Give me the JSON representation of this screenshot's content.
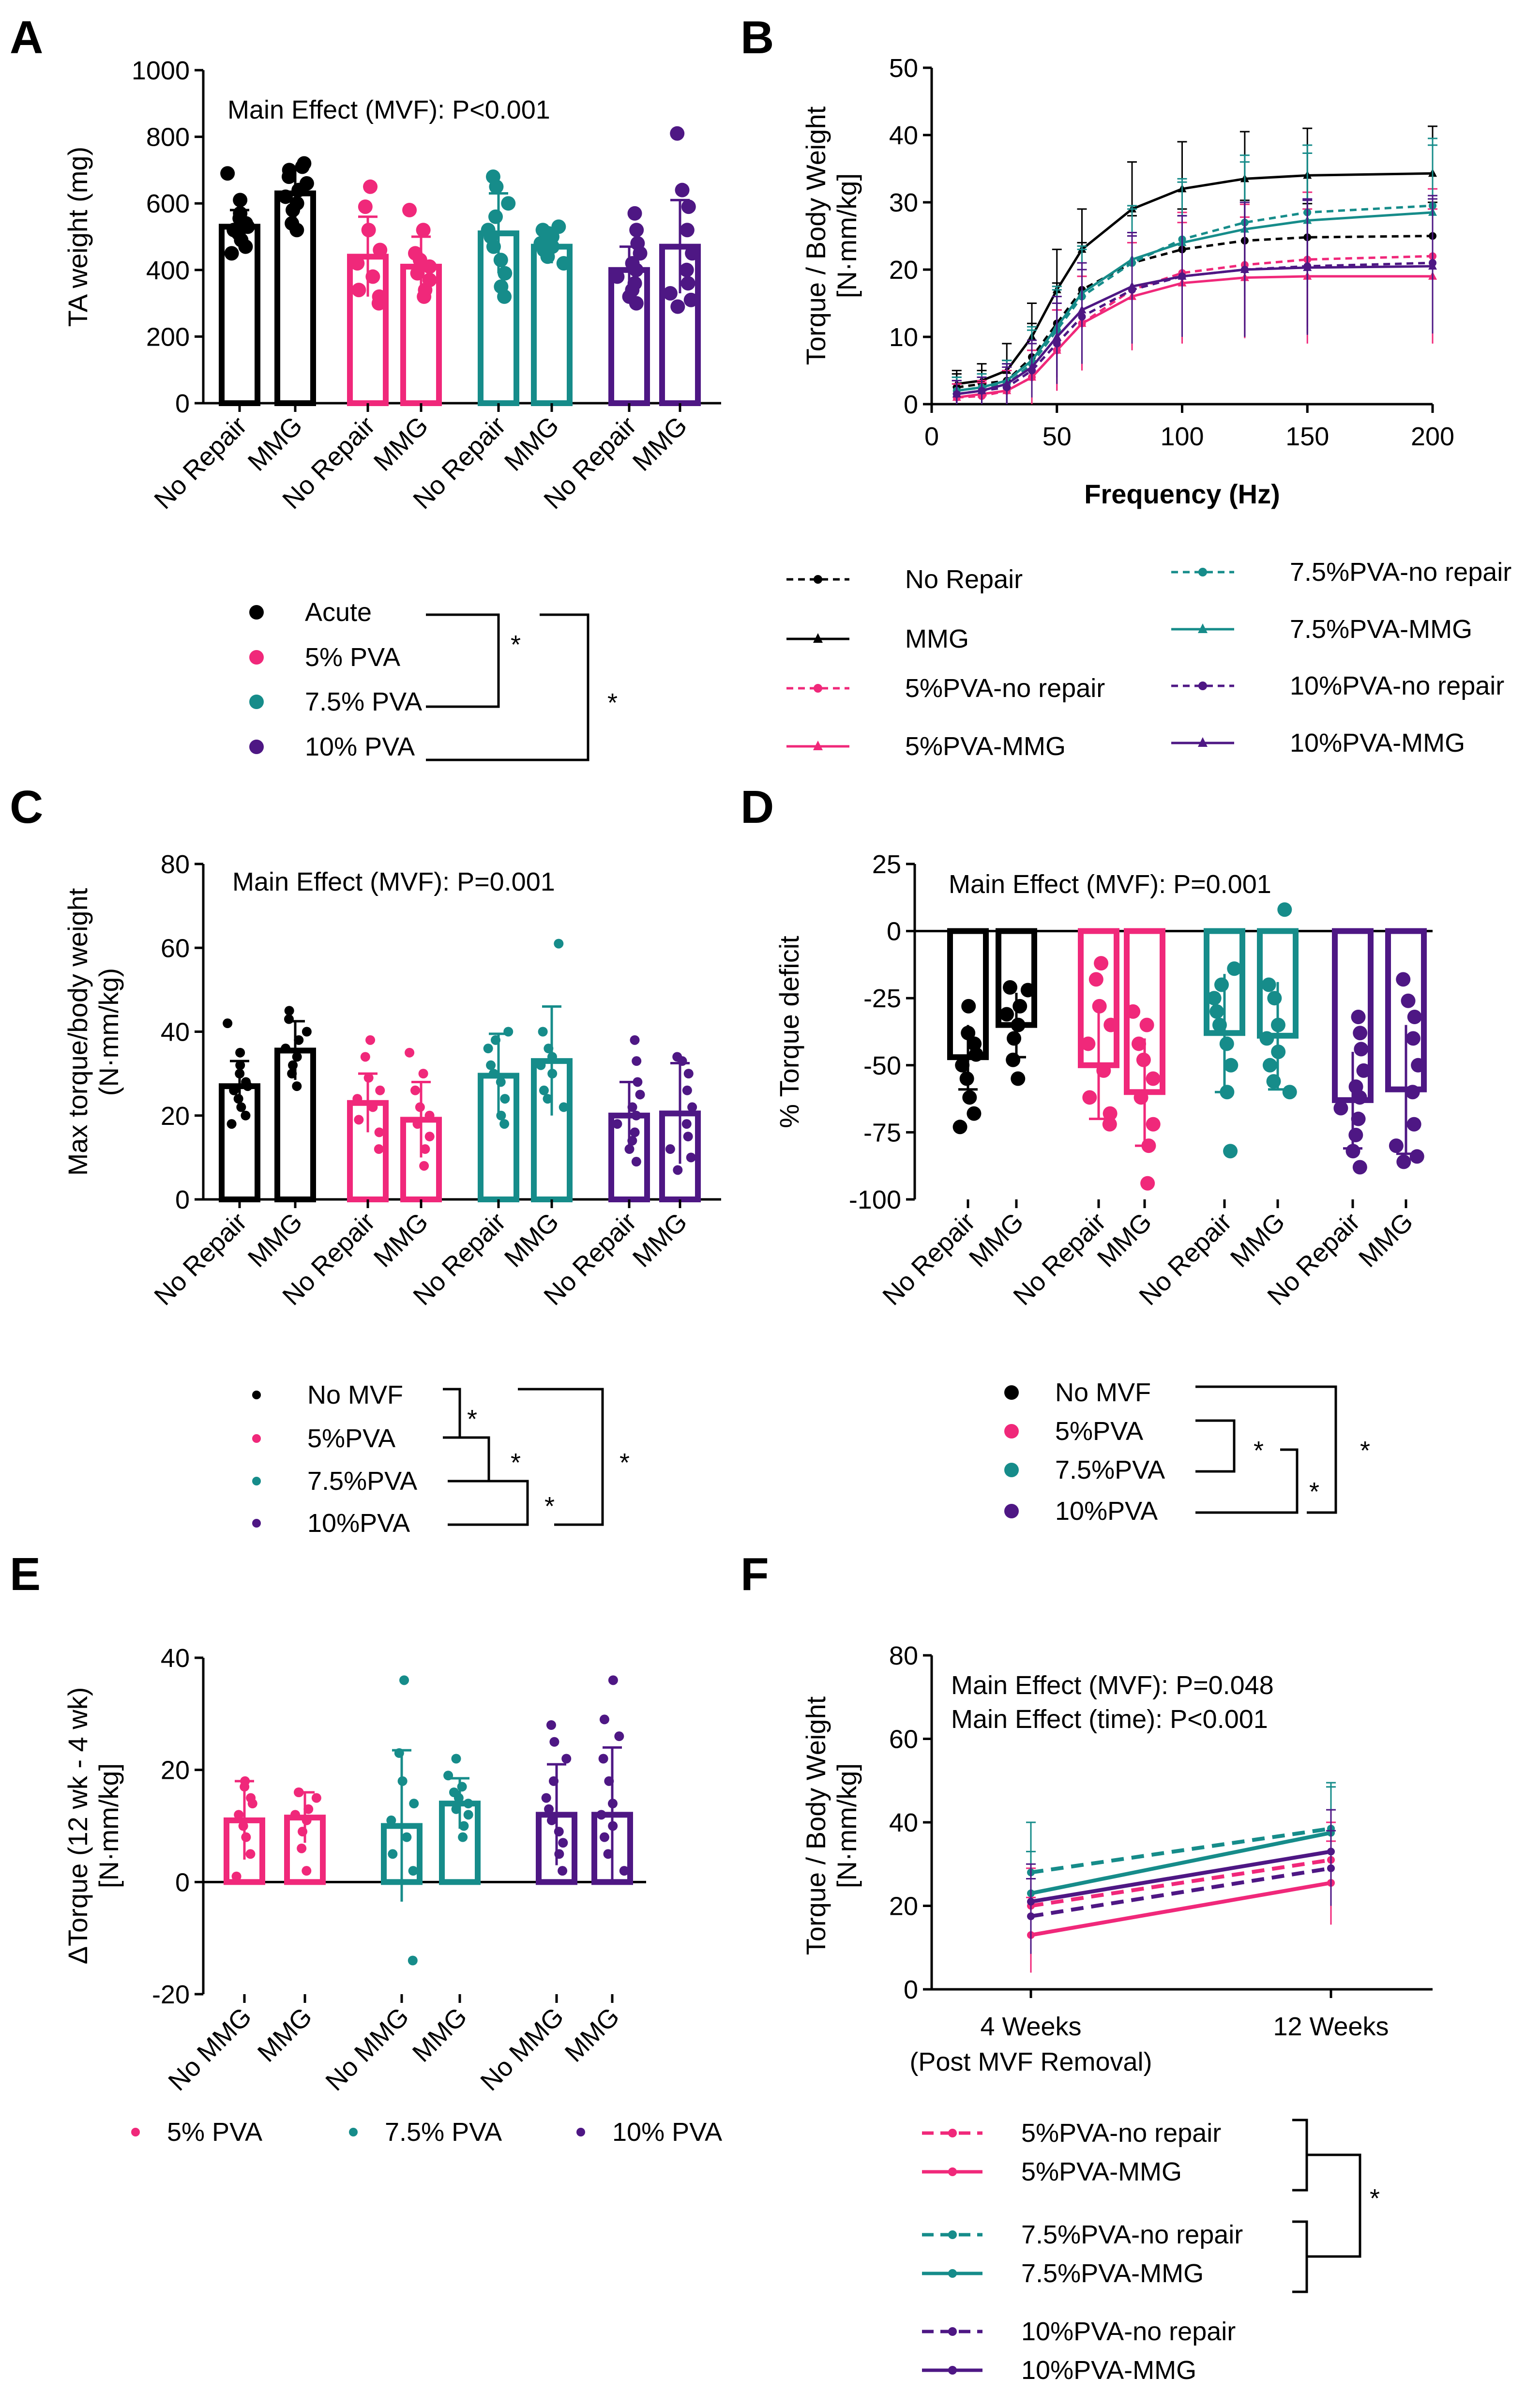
{
  "colors": {
    "black": "#000000",
    "pink": "#f0287a",
    "teal": "#168c8a",
    "purple": "#4e1784"
  },
  "panels": {
    "A": {
      "letter": "A"
    },
    "B": {
      "letter": "B"
    },
    "C": {
      "letter": "C"
    },
    "D": {
      "letter": "D"
    },
    "E": {
      "letter": "E"
    },
    "F": {
      "letter": "F"
    }
  },
  "chart_data": [
    {
      "id": "A",
      "type": "bar",
      "title": "Main  Effect  (MVF): P<0.001",
      "ylabel": "TA weight  (mg)",
      "ylim": [
        0,
        1000
      ],
      "yticks": [
        0,
        200,
        400,
        600,
        800,
        1000
      ],
      "categories": [
        "No Repair",
        "MMG",
        "No Repair",
        "MMG",
        "No Repair",
        "MMG",
        "No Repair",
        "MMG"
      ],
      "bars": [
        {
          "group": "Acute",
          "value": 530,
          "err": 50,
          "points": [
            450,
            470,
            490,
            510,
            520,
            530,
            540,
            555,
            570,
            610,
            690
          ]
        },
        {
          "group": "Acute",
          "value": 630,
          "err": 80,
          "points": [
            520,
            540,
            580,
            600,
            620,
            640,
            660,
            680,
            700,
            710,
            720
          ]
        },
        {
          "group": "5% PVA",
          "value": 440,
          "err": 120,
          "points": [
            300,
            320,
            340,
            380,
            420,
            460,
            520,
            590,
            650
          ]
        },
        {
          "group": "5% PVA",
          "value": 410,
          "err": 90,
          "points": [
            320,
            340,
            370,
            390,
            410,
            430,
            450,
            520,
            580
          ]
        },
        {
          "group": "7.5% PVA",
          "value": 510,
          "err": 120,
          "points": [
            320,
            350,
            390,
            430,
            470,
            500,
            520,
            560,
            600,
            650,
            680
          ]
        },
        {
          "group": "7.5% PVA",
          "value": 470,
          "err": 50,
          "points": [
            420,
            440,
            460,
            470,
            480,
            500,
            510,
            520,
            530
          ]
        },
        {
          "group": "10% PVA",
          "value": 400,
          "err": 70,
          "points": [
            300,
            320,
            340,
            360,
            380,
            400,
            420,
            450,
            480,
            520,
            570
          ]
        },
        {
          "group": "10% PVA",
          "value": 470,
          "err": 140,
          "points": [
            290,
            310,
            330,
            360,
            400,
            450,
            520,
            590,
            640,
            810
          ]
        }
      ],
      "legend": [
        "Acute",
        "5% PVA",
        "7.5% PVA",
        "10% PVA"
      ],
      "sig": "*"
    },
    {
      "id": "B",
      "type": "line",
      "xlabel": "Frequency (Hz)",
      "ylabel": "Torque / Body Weight [N·mm/kg]",
      "xlim": [
        0,
        200
      ],
      "ylim": [
        0,
        50
      ],
      "xticks": [
        0,
        50,
        100,
        150,
        200
      ],
      "yticks": [
        0,
        10,
        20,
        30,
        40,
        50
      ],
      "x": [
        10,
        20,
        30,
        40,
        50,
        60,
        80,
        100,
        125,
        150,
        200
      ],
      "series": [
        {
          "name": "No Repair",
          "dash": true,
          "marker": "circle",
          "color": "black",
          "values": [
            2.5,
            3,
            3.5,
            7,
            12,
            17,
            21,
            23,
            24.3,
            24.8,
            25
          ],
          "err": [
            2,
            2,
            3,
            5,
            6,
            7,
            7,
            6,
            6,
            5,
            5
          ]
        },
        {
          "name": "MMG",
          "dash": false,
          "marker": "triangle",
          "color": "black",
          "values": [
            3,
            3.5,
            5,
            10,
            17,
            23,
            29,
            32,
            33.5,
            34,
            34.3
          ],
          "err": [
            2,
            2.5,
            4,
            5,
            6,
            6,
            7,
            7,
            7,
            7,
            7
          ]
        },
        {
          "name": "5%PVA-no repair",
          "dash": true,
          "marker": "circle",
          "color": "pink",
          "values": [
            1,
            1.2,
            2,
            4,
            8,
            12,
            17,
            19.5,
            20.7,
            21.5,
            22
          ],
          "err": [
            2,
            2,
            3,
            4,
            6,
            7,
            8,
            9,
            9,
            10,
            10
          ]
        },
        {
          "name": "5%PVA-MMG",
          "dash": false,
          "marker": "triangle",
          "color": "pink",
          "values": [
            1,
            1.5,
            2,
            4,
            8,
            12,
            16,
            18,
            18.8,
            19,
            19
          ],
          "err": [
            2,
            2,
            3,
            4,
            6,
            7,
            8,
            9,
            9,
            10,
            10
          ]
        },
        {
          "name": "7.5%PVA-no repair",
          "dash": true,
          "marker": "circle",
          "color": "teal",
          "values": [
            2,
            2.5,
            3,
            6,
            11,
            16,
            21,
            24.5,
            27,
            28.5,
            29.5
          ],
          "err": [
            2,
            2,
            3,
            5,
            6,
            7,
            8,
            9,
            10,
            10,
            10
          ]
        },
        {
          "name": "7.5%PVA-MMG",
          "dash": false,
          "marker": "triangle",
          "color": "teal",
          "values": [
            2,
            2.5,
            3.5,
            6.5,
            11.5,
            16.5,
            21.5,
            24,
            26,
            27.3,
            28.5
          ],
          "err": [
            2,
            2,
            3,
            5,
            6,
            7,
            8,
            9,
            10,
            10,
            10
          ]
        },
        {
          "name": "10%PVA-no repair",
          "dash": true,
          "marker": "circle",
          "color": "purple",
          "values": [
            1.5,
            2,
            2.5,
            5,
            9,
            13,
            17,
            19,
            20,
            20.5,
            21
          ],
          "err": [
            2,
            2,
            3,
            4,
            6,
            7,
            8,
            9,
            10,
            10,
            10
          ]
        },
        {
          "name": "10%PVA-MMG",
          "dash": false,
          "marker": "triangle",
          "color": "purple",
          "values": [
            1.5,
            2,
            3,
            5.5,
            10,
            14,
            17.5,
            19,
            20,
            20.3,
            20.5
          ],
          "err": [
            2,
            2,
            3,
            4,
            6,
            7,
            8,
            9,
            10,
            10,
            10
          ]
        }
      ]
    },
    {
      "id": "C",
      "type": "bar",
      "title": "Main  Effect  (MVF): P=0.001",
      "ylabel": "Max torque/body weight (N·mm/kg)",
      "ylim": [
        0,
        80
      ],
      "yticks": [
        0,
        20,
        40,
        60,
        80
      ],
      "categories": [
        "No Repair",
        "MMG",
        "No Repair",
        "MMG",
        "No Repair",
        "MMG",
        "No Repair",
        "MMG"
      ],
      "bars": [
        {
          "group": "No MVF",
          "value": 27,
          "err": 6,
          "points": [
            18,
            20,
            22,
            24,
            26,
            27,
            28,
            30,
            32,
            35,
            42
          ]
        },
        {
          "group": "No MVF",
          "value": 35.5,
          "err": 7,
          "points": [
            27,
            30,
            32,
            34,
            36,
            38,
            40,
            43,
            45
          ]
        },
        {
          "group": "5%PVA",
          "value": 23,
          "err": 7,
          "points": [
            12,
            16,
            19,
            22,
            24,
            26,
            29,
            34,
            38
          ]
        },
        {
          "group": "5%PVA",
          "value": 19,
          "err": 9,
          "points": [
            8,
            12,
            15,
            18,
            20,
            22,
            26,
            30,
            35
          ]
        },
        {
          "group": "7.5%PVA",
          "value": 29.5,
          "err": 10,
          "points": [
            18,
            20,
            24,
            28,
            30,
            32,
            36,
            38,
            40
          ]
        },
        {
          "group": "7.5%PVA",
          "value": 33,
          "err": 13,
          "points": [
            22,
            24,
            26,
            30,
            32,
            34,
            36,
            40,
            61
          ]
        },
        {
          "group": "10%PVA",
          "value": 20,
          "err": 8,
          "points": [
            9,
            12,
            14,
            16,
            18,
            20,
            22,
            25,
            28,
            33,
            38
          ]
        },
        {
          "group": "10%PVA",
          "value": 20.5,
          "err": 12,
          "points": [
            7,
            10,
            12,
            15,
            18,
            22,
            26,
            30,
            33,
            34
          ]
        }
      ],
      "legend": [
        "No MVF",
        "5%PVA",
        "7.5%PVA",
        "10%PVA"
      ],
      "sig": "*"
    },
    {
      "id": "D",
      "type": "bar",
      "title": "Main Effect (MVF): P=0.001",
      "ylabel": "% Torque deficit",
      "ylim": [
        -100,
        25
      ],
      "yticks": [
        -100,
        -75,
        -50,
        -25,
        0,
        25
      ],
      "categories": [
        "No Repair",
        "MMG",
        "No Repair",
        "MMG",
        "No Repair",
        "MMG",
        "No Repair",
        "MMG"
      ],
      "bars": [
        {
          "group": "No MVF",
          "value": -47,
          "err": 12,
          "points": [
            -73,
            -68,
            -62,
            -55,
            -50,
            -46,
            -42,
            -38,
            -28
          ]
        },
        {
          "group": "No MVF",
          "value": -35,
          "err": 12,
          "points": [
            -55,
            -48,
            -40,
            -35,
            -31,
            -28,
            -22,
            -21
          ]
        },
        {
          "group": "5%PVA",
          "value": -50,
          "err": 20,
          "points": [
            -72,
            -68,
            -62,
            -52,
            -42,
            -35,
            -28,
            -18,
            -12
          ]
        },
        {
          "group": "5%PVA",
          "value": -60,
          "err": 20,
          "points": [
            -94,
            -80,
            -72,
            -62,
            -55,
            -48,
            -42,
            -35,
            -30
          ]
        },
        {
          "group": "7.5%PVA",
          "value": -38,
          "err": 22,
          "points": [
            -82,
            -60,
            -50,
            -42,
            -35,
            -30,
            -25,
            -20,
            -14
          ]
        },
        {
          "group": "7.5%PVA",
          "value": -39,
          "err": 20,
          "points": [
            -60,
            -56,
            -50,
            -45,
            -40,
            -35,
            -25,
            -20,
            8
          ]
        },
        {
          "group": "10%PVA",
          "value": -63,
          "err": 18,
          "points": [
            -88,
            -82,
            -76,
            -70,
            -66,
            -62,
            -58,
            -52,
            -44,
            -38,
            -32
          ]
        },
        {
          "group": "10%PVA",
          "value": -59,
          "err": 24,
          "points": [
            -86,
            -84,
            -80,
            -72,
            -60,
            -50,
            -40,
            -32,
            -26,
            -18
          ]
        }
      ],
      "legend": [
        "No MVF",
        "5%PVA",
        "7.5%PVA",
        "10%PVA"
      ],
      "sig": "*"
    },
    {
      "id": "E",
      "type": "bar",
      "ylabel": "ΔTorque  (12 wk - 4 wk) [N·mm/kg]",
      "ylim": [
        -20,
        40
      ],
      "yticks": [
        -20,
        0,
        20,
        40
      ],
      "categories": [
        "No MMG",
        "MMG",
        "No MMG",
        "MMG",
        "No MMG",
        "MMG"
      ],
      "bars": [
        {
          "group": "5% PVA",
          "value": 11,
          "err": 7,
          "points": [
            1,
            5,
            8,
            10,
            12,
            14,
            15,
            17,
            18
          ]
        },
        {
          "group": "5% PVA",
          "value": 11.5,
          "err": 4.5,
          "points": [
            2,
            6,
            9,
            11,
            12,
            13,
            15,
            16,
            16
          ]
        },
        {
          "group": "7.5% PVA",
          "value": 10,
          "err": 13.5,
          "points": [
            -14,
            2,
            5,
            8,
            11,
            14,
            18,
            23,
            36
          ]
        },
        {
          "group": "7.5% PVA",
          "value": 14,
          "err": 4.5,
          "points": [
            8,
            10,
            12,
            13,
            14,
            15,
            16,
            17,
            19,
            22
          ]
        },
        {
          "group": "10% PVA",
          "value": 12,
          "err": 9,
          "points": [
            2,
            5,
            7,
            9,
            11,
            13,
            15,
            18,
            22,
            25,
            28
          ]
        },
        {
          "group": "10% PVA",
          "value": 12,
          "err": 12,
          "points": [
            2,
            5,
            8,
            10,
            12,
            14,
            18,
            22,
            26,
            29,
            36
          ]
        }
      ],
      "legend": [
        "5% PVA",
        "7.5% PVA",
        "10% PVA"
      ]
    },
    {
      "id": "F",
      "type": "line",
      "ylabel": "Torque / Body Weight [N·mm/kg]",
      "annotations": [
        "Main Effect (MVF): P=0.048",
        "Main Effect (time): P<0.001"
      ],
      "categories": [
        "4 Weeks",
        "12 Weeks"
      ],
      "xsub": "(Post MVF Removal)",
      "ylim": [
        0,
        80
      ],
      "yticks": [
        0,
        20,
        40,
        60,
        80
      ],
      "series": [
        {
          "name": "5%PVA-no repair",
          "dash": true,
          "color": "pink",
          "values": [
            20,
            31
          ],
          "err": [
            9,
            9
          ]
        },
        {
          "name": "5%PVA-MMG",
          "dash": false,
          "color": "pink",
          "values": [
            13,
            25.5
          ],
          "err": [
            9,
            10
          ]
        },
        {
          "name": "7.5%PVA-no repair",
          "dash": true,
          "color": "teal",
          "values": [
            28,
            38.5
          ],
          "err": [
            12,
            11
          ]
        },
        {
          "name": "7.5%PVA-MMG",
          "dash": false,
          "color": "teal",
          "values": [
            23,
            37.5
          ],
          "err": [
            10,
            11
          ]
        },
        {
          "name": "10%PVA-no repair",
          "dash": true,
          "color": "purple",
          "values": [
            17.5,
            29
          ],
          "err": [
            9,
            9
          ]
        },
        {
          "name": "10%PVA-MMG",
          "dash": false,
          "color": "purple",
          "values": [
            21,
            33
          ],
          "err": [
            9,
            10
          ]
        }
      ],
      "sig": "*"
    }
  ]
}
